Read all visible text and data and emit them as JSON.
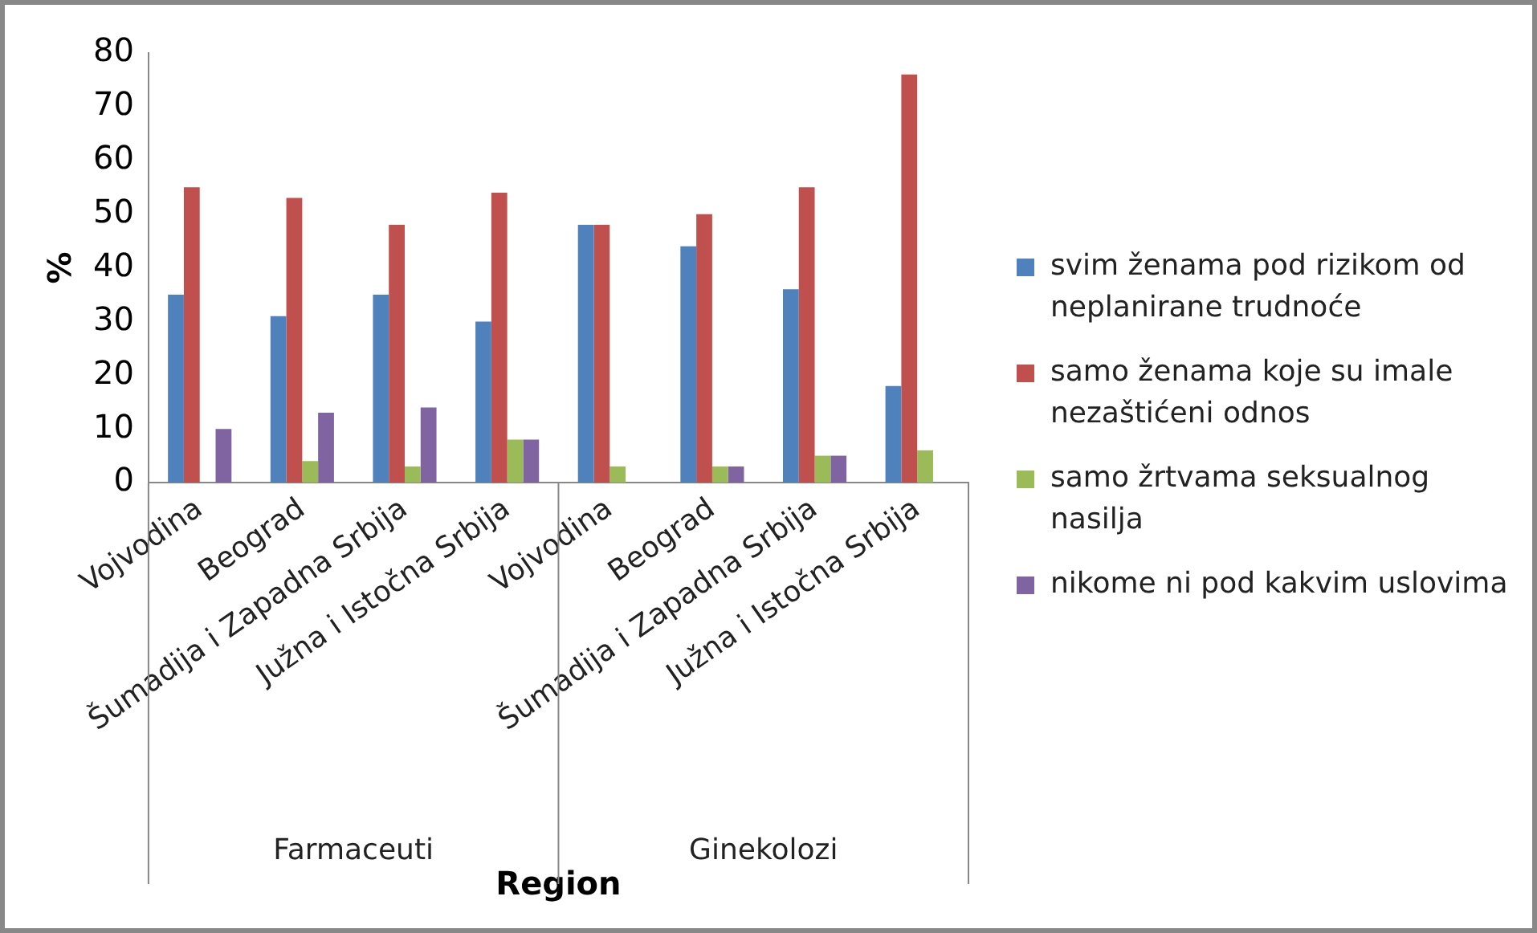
{
  "chart_data": {
    "type": "bar",
    "ylabel": "%",
    "xlabel": "Region",
    "categories": [
      "Vojvodina",
      "Beograd",
      "Šumadija i Zapadna Srbija",
      "Južna i Istočna Srbija",
      "Vojvodina",
      "Beograd",
      "Šumadija i Zapadna Srbija",
      "Južna i Istočna Srbija"
    ],
    "series": [
      {
        "name": "svim ženama pod rizikom od neplanirane trudnoće",
        "color": "#4f81bd",
        "values": [
          35,
          31,
          35,
          30,
          48,
          44,
          36,
          18
        ]
      },
      {
        "name": "samo ženama koje su imale nezaštićeni odnos",
        "color": "#c0504d",
        "values": [
          55,
          53,
          48,
          54,
          48,
          50,
          55,
          76
        ]
      },
      {
        "name": "samo žrtvama seksualnog nasilja",
        "color": "#9bbb59",
        "values": [
          0,
          4,
          3,
          8,
          3,
          3,
          5,
          6
        ]
      },
      {
        "name": "nikome ni pod kakvim uslovima",
        "color": "#8064a2",
        "values": [
          10,
          13,
          14,
          8,
          0,
          3,
          5,
          0
        ]
      }
    ],
    "annotations": [
      "Farmaceuti",
      "Ginekolozi"
    ],
    "ylim": [
      0,
      80
    ],
    "yticks": [
      0,
      10,
      20,
      30,
      40,
      50,
      60,
      70,
      80
    ],
    "grid": false,
    "legend": "right"
  }
}
